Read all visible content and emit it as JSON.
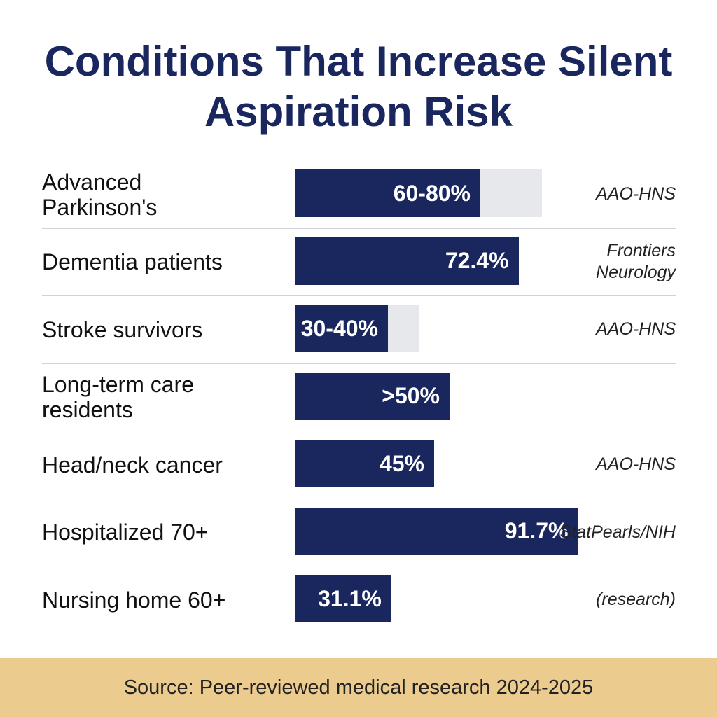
{
  "chart_data": {
    "type": "bar",
    "title": "Conditions That Increase Silent Aspiration Risk",
    "categories": [
      "Advanced\nParkinson's",
      "Dementia patients",
      "Stroke survivors",
      "Long-term care\nresidents",
      "Head/neck cancer",
      "Hospitalized 70+",
      "Nursing home 60+"
    ],
    "values": [
      60,
      72.4,
      30,
      50,
      45,
      91.7,
      31.1
    ],
    "range_high": [
      80,
      null,
      40,
      null,
      null,
      null,
      null
    ],
    "value_labels": [
      "60-80%",
      "72.4%",
      "30-40%",
      ">50%",
      "45%",
      "91.7%",
      "31.1%"
    ],
    "sources": [
      "AAO-HNS",
      "Frontiers\nNeurology",
      "AAO-HNS",
      null,
      "AAO-HNS",
      "StatPearls/NIH",
      "(research)"
    ],
    "color": "#19275e",
    "range_color": "#e6e8ec",
    "footer": "Source: Peer-reviewed medical research 2024-2025"
  }
}
